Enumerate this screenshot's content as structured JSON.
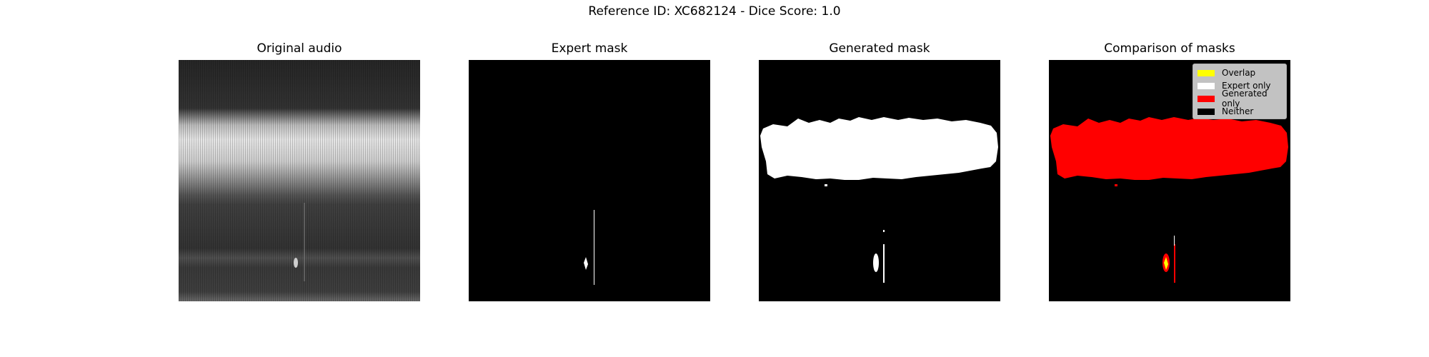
{
  "figure": {
    "suptitle": "Reference ID: XC682124 - Dice Score: 1.0"
  },
  "panels": [
    {
      "title": "Original audio"
    },
    {
      "title": "Expert mask"
    },
    {
      "title": "Generated mask"
    },
    {
      "title": "Comparison of masks"
    }
  ],
  "legend": [
    {
      "label": "Overlap",
      "color": "#ffff00"
    },
    {
      "label": "Expert only",
      "color": "#ffffff"
    },
    {
      "label": "Generated only",
      "color": "#ff0000"
    },
    {
      "label": "Neither",
      "color": "#000000"
    }
  ]
}
